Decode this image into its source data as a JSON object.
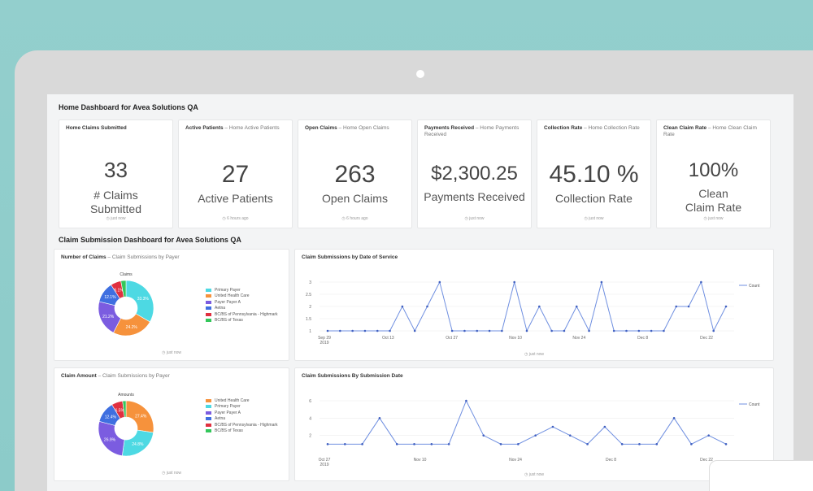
{
  "dashboard1": {
    "title": "Home Dashboard for Avea Solutions QA",
    "kpis": [
      {
        "name": "Home Claims Submitted",
        "subtitle": "",
        "value": "33",
        "label": "# Claims Submitted",
        "stamp": "just now"
      },
      {
        "name": "Active Patients",
        "subtitle": " – Home Active Patients",
        "value": "27",
        "label": "Active Patients",
        "stamp": "6 hours ago"
      },
      {
        "name": "Open Claims",
        "subtitle": " – Home Open Claims",
        "value": "263",
        "label": "Open Claims",
        "stamp": "6 hours ago"
      },
      {
        "name": "Payments Received",
        "subtitle": " – Home Payments Received",
        "value": "$2,300.25",
        "label": "Payments Received",
        "stamp": "just now"
      },
      {
        "name": "Collection Rate",
        "subtitle": " – Home Collection Rate",
        "value": "45.10 %",
        "label": "Collection Rate",
        "stamp": "just now"
      },
      {
        "name": "Clean Claim Rate",
        "subtitle": " – Home Clean Claim Rate",
        "value": "100%",
        "label": "Clean Claim Rate",
        "stamp": "just now"
      }
    ]
  },
  "dashboard2": {
    "title": "Claim Submission Dashboard for Avea Solutions QA",
    "pie1_card": {
      "name": "Number of Claims",
      "subtitle": " – Claim Submissions by Payer",
      "stamp": "just now"
    },
    "line1_card": {
      "name": "Claim Submissions by Date of Service",
      "stamp": "just now"
    },
    "pie2_card": {
      "name": "Claim Amount",
      "subtitle": " – Claim Submissions by Payer",
      "stamp": "just now"
    },
    "line2_card": {
      "name": "Claim Submissions By Submission Date",
      "stamp": "just now"
    }
  },
  "chart_data": [
    {
      "type": "pie",
      "title": "Claims",
      "labels": [
        "Primary Payer",
        "United Health Care",
        "Payer Payer A",
        "Aetna",
        "BC/BS of Pennsylvania - Highmark",
        "BC/BS of Texas"
      ],
      "values": [
        33.3,
        24.2,
        21.2,
        12.1,
        6.1,
        3.0
      ],
      "slice_labels": [
        "33.3%",
        "24.2%",
        "21.2%",
        "12.1%",
        "6.1%",
        ""
      ],
      "colors": [
        "#4dd9e3",
        "#f6923c",
        "#7b5ce0",
        "#3f6fe0",
        "#e03040",
        "#33c75a"
      ],
      "legend": "right"
    },
    {
      "type": "line",
      "title": "",
      "series": [
        {
          "name": "Count",
          "values": [
            1,
            1,
            1,
            1,
            1,
            1,
            2,
            1,
            2,
            3,
            1,
            1,
            1,
            1,
            1,
            3,
            1,
            2,
            1,
            1,
            2,
            1,
            3,
            1,
            1,
            1,
            1,
            1,
            2,
            2,
            3,
            1,
            2
          ]
        }
      ],
      "y_ticks": [
        "1",
        "1.5",
        "2",
        "2.5",
        "3"
      ],
      "x_ticks": [
        "Sep 29\n2019",
        "Oct 13",
        "Oct 27",
        "Nov 10",
        "Nov 24",
        "Dec 8",
        "Dec 22"
      ],
      "ylim": [
        1,
        3
      ],
      "legend": "top-right"
    },
    {
      "type": "pie",
      "title": "Amounts",
      "labels": [
        "United Health Care",
        "Primary Payer",
        "Payer Payer A",
        "Aetna",
        "BC/BS of Pennsylvania - Highmark",
        "BC/BS of Texas"
      ],
      "values": [
        27.4,
        24.8,
        26.9,
        12.4,
        6.5,
        2.0
      ],
      "slice_labels": [
        "27.4%",
        "24.8%",
        "26.9%",
        "12.4%",
        "6.5%",
        ""
      ],
      "colors": [
        "#f6923c",
        "#4dd9e3",
        "#7b5ce0",
        "#3f6fe0",
        "#e03040",
        "#33c75a"
      ],
      "legend": "right"
    },
    {
      "type": "line",
      "title": "",
      "series": [
        {
          "name": "Count",
          "values": [
            1,
            1,
            1,
            4,
            1,
            1,
            1,
            1,
            6,
            2,
            1,
            1,
            2,
            3,
            2,
            1,
            3,
            1,
            1,
            1,
            4,
            1,
            2,
            1
          ]
        }
      ],
      "y_ticks": [
        "2",
        "4",
        "6"
      ],
      "x_ticks": [
        "Oct 27\n2019",
        "Nov 10",
        "Nov 24",
        "Dec 8",
        "Dec 22"
      ],
      "ylim": [
        0,
        6
      ],
      "legend": "top-right"
    }
  ]
}
